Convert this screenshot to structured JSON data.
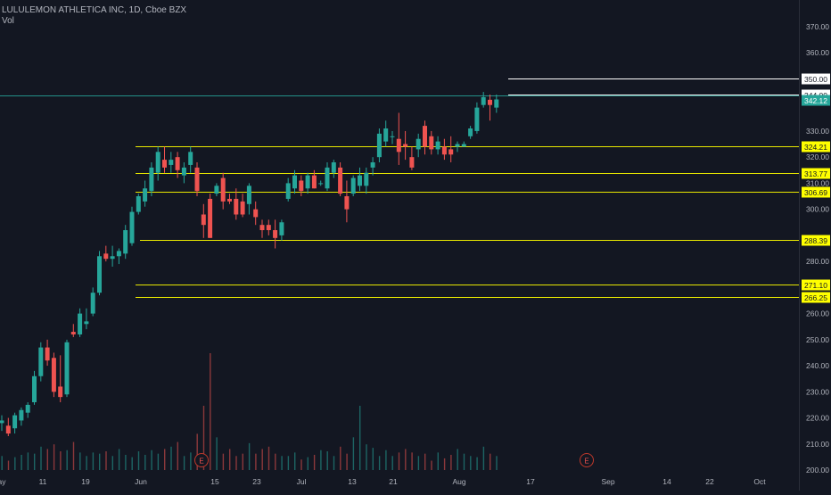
{
  "legend": {
    "title": "LULULEMON ATHLETICA INC, 1D, Cboe BZX",
    "sub": "Vol"
  },
  "colors": {
    "background": "#131722",
    "up": "#26a69a",
    "down": "#ef5350",
    "level_line": "#e8e800",
    "white_line": "#ffffff",
    "price_line": "#26a69a",
    "axis_text": "#b2b5be"
  },
  "chart_data": {
    "type": "candlestick",
    "title": "LULULEMON ATHLETICA INC, 1D, Cboe BZX",
    "y_axis": {
      "min": 200,
      "max": 375,
      "ticks": [
        200,
        210,
        220,
        230,
        240,
        250,
        260,
        270,
        280,
        290,
        300,
        310,
        320,
        330,
        340,
        350,
        360,
        370
      ],
      "tick_labels": [
        "200.00",
        "210.00",
        "220.00",
        "230.00",
        "240.00",
        "250.00",
        "260.00",
        "270.00",
        "280.00",
        "290.00",
        "300.00",
        "310.00",
        "320.00",
        "330.00",
        "340.00",
        "350.00",
        "360.00",
        "370.00"
      ]
    },
    "x_axis": {
      "labels": [
        "ay",
        "11",
        "19",
        "Jun",
        "15",
        "23",
        "Jul",
        "13",
        "21",
        "Aug",
        "17",
        "Sep",
        "14",
        "22",
        "Oct"
      ]
    },
    "candles": [
      {
        "d": "May 5",
        "o": 218,
        "h": 221,
        "l": 215,
        "c": 219
      },
      {
        "d": "May 6",
        "o": 217,
        "h": 220,
        "l": 213,
        "c": 214
      },
      {
        "d": "May 7",
        "o": 216,
        "h": 222,
        "l": 214,
        "c": 221
      },
      {
        "d": "May 8",
        "o": 219,
        "h": 224,
        "l": 217,
        "c": 223
      },
      {
        "d": "May 11",
        "o": 222,
        "h": 226,
        "l": 220,
        "c": 225
      },
      {
        "d": "May 12",
        "o": 226,
        "h": 238,
        "l": 225,
        "c": 236
      },
      {
        "d": "May 13",
        "o": 236,
        "h": 249,
        "l": 234,
        "c": 247
      },
      {
        "d": "May 14",
        "o": 247,
        "h": 250,
        "l": 240,
        "c": 242
      },
      {
        "d": "May 15",
        "o": 243,
        "h": 245,
        "l": 228,
        "c": 230
      },
      {
        "d": "May 18",
        "o": 232,
        "h": 244,
        "l": 226,
        "c": 228
      },
      {
        "d": "May 19",
        "o": 229,
        "h": 250,
        "l": 228,
        "c": 249
      },
      {
        "d": "May 20",
        "o": 253,
        "h": 256,
        "l": 251,
        "c": 252
      },
      {
        "d": "May 21",
        "o": 252,
        "h": 262,
        "l": 251,
        "c": 260
      },
      {
        "d": "May 22",
        "o": 256,
        "h": 262,
        "l": 254,
        "c": 257
      },
      {
        "d": "May 26",
        "o": 260,
        "h": 270,
        "l": 259,
        "c": 268
      },
      {
        "d": "May 27",
        "o": 268,
        "h": 284,
        "l": 267,
        "c": 282
      },
      {
        "d": "May 28",
        "o": 283,
        "h": 286,
        "l": 280,
        "c": 281
      },
      {
        "d": "May 29",
        "o": 281,
        "h": 286,
        "l": 278,
        "c": 282
      },
      {
        "d": "Jun 1",
        "o": 282,
        "h": 285,
        "l": 279,
        "c": 284
      },
      {
        "d": "Jun 2",
        "o": 283,
        "h": 294,
        "l": 281,
        "c": 292
      },
      {
        "d": "Jun 3",
        "o": 287,
        "h": 301,
        "l": 286,
        "c": 299
      },
      {
        "d": "Jun 4",
        "o": 299,
        "h": 306,
        "l": 298,
        "c": 305
      },
      {
        "d": "Jun 5",
        "o": 303,
        "h": 311,
        "l": 301,
        "c": 308
      },
      {
        "d": "Jun 8",
        "o": 307,
        "h": 318,
        "l": 305,
        "c": 316
      },
      {
        "d": "Jun 9",
        "o": 314,
        "h": 324,
        "l": 311,
        "c": 322
      },
      {
        "d": "Jun 10",
        "o": 319,
        "h": 324,
        "l": 314,
        "c": 316
      },
      {
        "d": "Jun 11",
        "o": 317,
        "h": 322,
        "l": 314,
        "c": 319
      },
      {
        "d": "Jun 12",
        "o": 320,
        "h": 322,
        "l": 312,
        "c": 315
      },
      {
        "d": "Jun 15",
        "o": 313,
        "h": 318,
        "l": 310,
        "c": 316
      },
      {
        "d": "Jun 16",
        "o": 317,
        "h": 324,
        "l": 314,
        "c": 322
      },
      {
        "d": "Jun 17",
        "o": 316,
        "h": 318,
        "l": 305,
        "c": 307
      },
      {
        "d": "Jun 18",
        "o": 298,
        "h": 302,
        "l": 289,
        "c": 294
      },
      {
        "d": "Jun 19",
        "o": 304,
        "h": 306,
        "l": 289,
        "c": 289
      },
      {
        "d": "Jun 22",
        "o": 306,
        "h": 310,
        "l": 305,
        "c": 309
      },
      {
        "d": "Jun 23",
        "o": 312,
        "h": 314,
        "l": 300,
        "c": 303
      },
      {
        "d": "Jun 24",
        "o": 304,
        "h": 306,
        "l": 302,
        "c": 303
      },
      {
        "d": "Jun 25",
        "o": 304,
        "h": 308,
        "l": 296,
        "c": 298
      },
      {
        "d": "Jun 26",
        "o": 303,
        "h": 306,
        "l": 297,
        "c": 298
      },
      {
        "d": "Jun 29",
        "o": 302,
        "h": 310,
        "l": 298,
        "c": 309
      },
      {
        "d": "Jun 30",
        "o": 300,
        "h": 303,
        "l": 294,
        "c": 297
      },
      {
        "d": "Jul 1",
        "o": 294,
        "h": 296,
        "l": 289,
        "c": 292
      },
      {
        "d": "Jul 2",
        "o": 294,
        "h": 296,
        "l": 290,
        "c": 292
      },
      {
        "d": "Jul 6",
        "o": 292,
        "h": 296,
        "l": 285,
        "c": 289
      },
      {
        "d": "Jul 7",
        "o": 290,
        "h": 296,
        "l": 288,
        "c": 295
      },
      {
        "d": "Jul 8",
        "o": 304,
        "h": 312,
        "l": 303,
        "c": 310
      },
      {
        "d": "Jul 9",
        "o": 308,
        "h": 315,
        "l": 306,
        "c": 313
      },
      {
        "d": "Jul 10",
        "o": 311,
        "h": 313,
        "l": 305,
        "c": 307
      },
      {
        "d": "Jul 13",
        "o": 308,
        "h": 314,
        "l": 306,
        "c": 313
      },
      {
        "d": "Jul 14",
        "o": 313,
        "h": 315,
        "l": 308,
        "c": 308
      },
      {
        "d": "Jul 15",
        "o": 310,
        "h": 311,
        "l": 309,
        "c": 310
      },
      {
        "d": "Jul 16",
        "o": 308,
        "h": 318,
        "l": 307,
        "c": 316
      },
      {
        "d": "Jul 17",
        "o": 314,
        "h": 319,
        "l": 312,
        "c": 318
      },
      {
        "d": "Jul 20",
        "o": 316,
        "h": 318,
        "l": 305,
        "c": 306
      },
      {
        "d": "Jul 21",
        "o": 305,
        "h": 311,
        "l": 295,
        "c": 300
      },
      {
        "d": "Jul 22",
        "o": 306,
        "h": 313,
        "l": 305,
        "c": 312
      },
      {
        "d": "Jul 23",
        "o": 309,
        "h": 316,
        "l": 307,
        "c": 313
      },
      {
        "d": "Jul 24",
        "o": 309,
        "h": 316,
        "l": 306,
        "c": 314
      },
      {
        "d": "Jul 27",
        "o": 316,
        "h": 320,
        "l": 313,
        "c": 318
      },
      {
        "d": "Jul 28",
        "o": 320,
        "h": 331,
        "l": 318,
        "c": 329
      },
      {
        "d": "Jul 29",
        "o": 326,
        "h": 334,
        "l": 324,
        "c": 331
      },
      {
        "d": "Jul 30",
        "o": 328,
        "h": 330,
        "l": 325,
        "c": 328
      },
      {
        "d": "Jul 31",
        "o": 327,
        "h": 337,
        "l": 317,
        "c": 322
      },
      {
        "d": "Aug 3",
        "o": 325,
        "h": 330,
        "l": 319,
        "c": 324
      },
      {
        "d": "Aug 4",
        "o": 320,
        "h": 324,
        "l": 315,
        "c": 316
      },
      {
        "d": "Aug 5",
        "o": 323,
        "h": 329,
        "l": 320,
        "c": 327
      },
      {
        "d": "Aug 6",
        "o": 332,
        "h": 334,
        "l": 321,
        "c": 324
      },
      {
        "d": "Aug 7",
        "o": 328,
        "h": 330,
        "l": 321,
        "c": 323
      },
      {
        "d": "Aug 10",
        "o": 323,
        "h": 328,
        "l": 321,
        "c": 326
      },
      {
        "d": "Aug 11",
        "o": 324,
        "h": 327,
        "l": 319,
        "c": 321
      },
      {
        "d": "Aug 12",
        "o": 323,
        "h": 328,
        "l": 318,
        "c": 321
      },
      {
        "d": "Aug 13",
        "o": 324,
        "h": 326,
        "l": 322,
        "c": 325
      },
      {
        "d": "Aug 14",
        "o": 324,
        "h": 326,
        "l": 324,
        "c": 325
      },
      {
        "d": "Aug 17",
        "o": 328,
        "h": 332,
        "l": 327,
        "c": 331
      },
      {
        "d": "Aug 18",
        "o": 330,
        "h": 341,
        "l": 329,
        "c": 339
      },
      {
        "d": "Aug 19",
        "o": 340,
        "h": 345,
        "l": 339,
        "c": 343
      },
      {
        "d": "Aug 20",
        "o": 342,
        "h": 344,
        "l": 334,
        "c": 340
      },
      {
        "d": "Aug 21",
        "o": 339,
        "h": 344,
        "l": 337,
        "c": 342.12
      }
    ],
    "volume": {
      "axis_max": 100,
      "bars": [
        12,
        8,
        11,
        13,
        15,
        14,
        20,
        18,
        22,
        16,
        17,
        24,
        15,
        12,
        15,
        14,
        16,
        12,
        18,
        13,
        11,
        16,
        13,
        17,
        14,
        18,
        20,
        24,
        12,
        15,
        31,
        55,
        100,
        28,
        14,
        18,
        12,
        14,
        23,
        14,
        18,
        20,
        14,
        12,
        12,
        15,
        9,
        11,
        13,
        17,
        16,
        12,
        20,
        14,
        28,
        55,
        22,
        19,
        12,
        17,
        12,
        15,
        18,
        15,
        12,
        14,
        8,
        15,
        10,
        13,
        18,
        14,
        12,
        11,
        20,
        14,
        12
      ]
    },
    "horizontal_levels": [
      {
        "value": 350.0,
        "label": "350.00",
        "style": "white"
      },
      {
        "value": 344.0,
        "label": "344.00",
        "style": "white"
      },
      {
        "value": 324.21,
        "label": "324.21",
        "style": "yellow"
      },
      {
        "value": 313.77,
        "label": "313.77",
        "style": "yellow"
      },
      {
        "value": 306.69,
        "label": "306.69",
        "style": "yellow"
      },
      {
        "value": 288.39,
        "label": "288.39",
        "style": "yellow"
      },
      {
        "value": 271.1,
        "label": "271.10",
        "style": "yellow"
      },
      {
        "value": 266.25,
        "label": "266.25",
        "style": "yellow"
      }
    ],
    "last_price": {
      "value": 342.12,
      "label": "342.12"
    },
    "events": [
      {
        "label": "E",
        "x_label_index": 4
      },
      {
        "label": "E",
        "x_label_index": 11
      }
    ]
  }
}
